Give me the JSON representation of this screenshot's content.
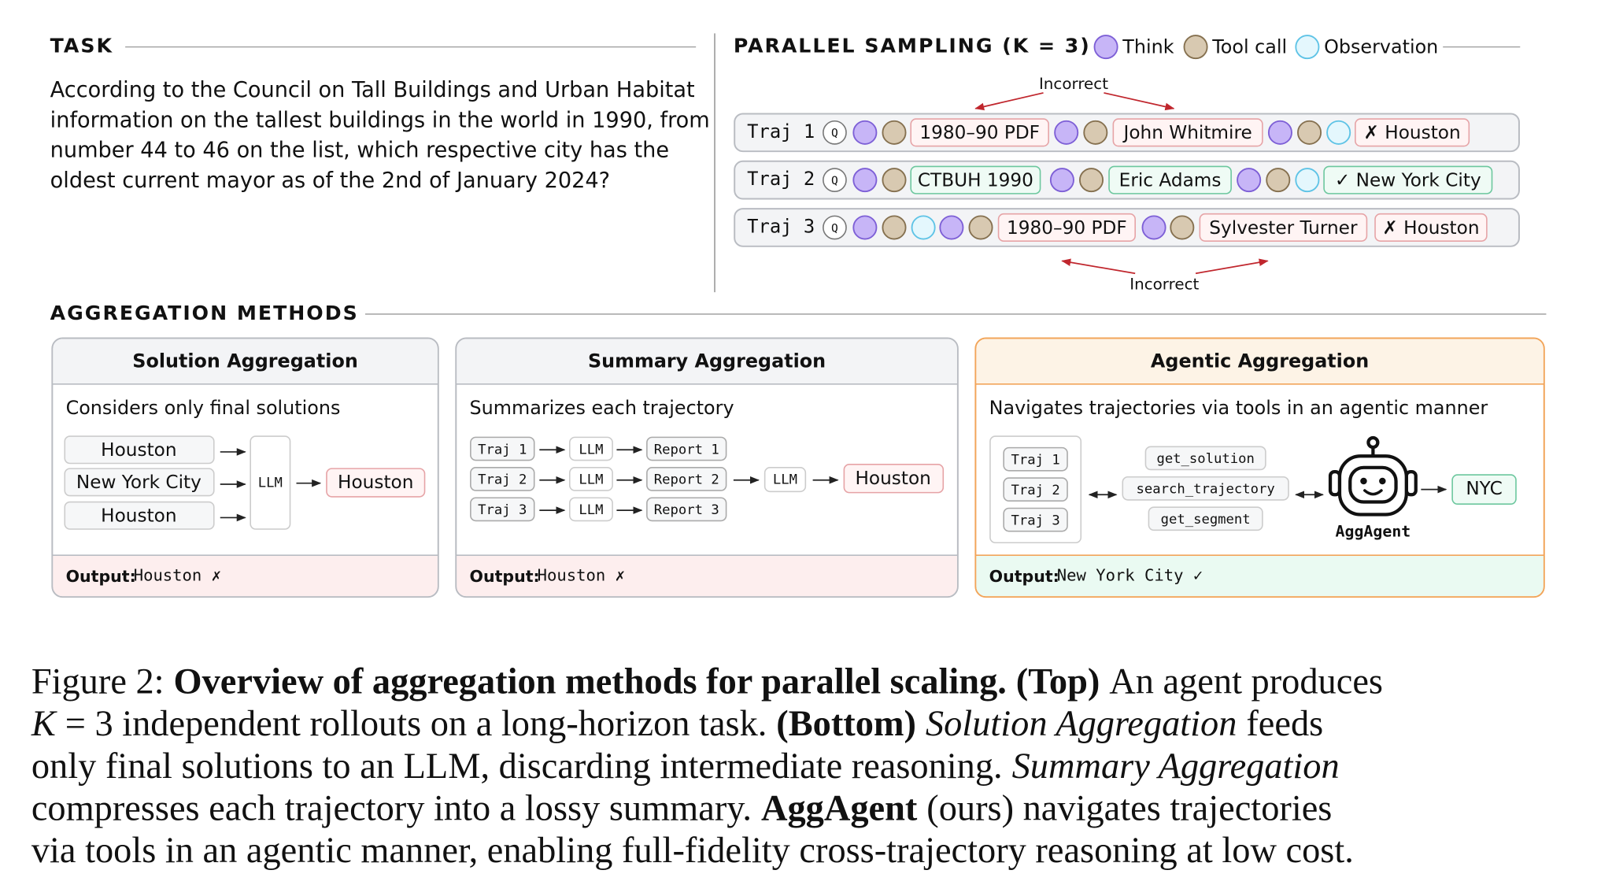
{
  "task": {
    "heading": "TASK",
    "lines": [
      "According to the Council on Tall Buildings and Urban Habitat",
      "information on the tallest buildings in the world in 1990, from",
      "number 44 to 46 on the list, which respective city has the",
      "oldest current mayor as of the 2nd of January 2024?"
    ]
  },
  "sampling": {
    "heading": "PARALLEL SAMPLING (K = 3)",
    "legend": [
      "Think",
      "Tool call",
      "Observation"
    ],
    "annotations": [
      "Incorrect",
      "Incorrect"
    ],
    "trajectories": [
      {
        "label": "Traj 1",
        "query": "Q",
        "boxes": [
          "1980–90 PDF",
          "John Whitmire",
          "✗ Houston"
        ]
      },
      {
        "label": "Traj 2",
        "query": "Q",
        "boxes": [
          "CTBUH 1990",
          "Eric Adams",
          "✓ New York City"
        ]
      },
      {
        "label": "Traj 3",
        "query": "Q",
        "boxes": [
          "1980–90 PDF",
          "Sylvester Turner",
          "✗ Houston"
        ]
      }
    ]
  },
  "aggregation": {
    "heading": "AGGREGATION METHODS",
    "panels": [
      {
        "title": "Solution Aggregation",
        "description": "Considers only final solutions",
        "inputs": [
          "Houston",
          "New York City",
          "Houston"
        ],
        "model": "LLM",
        "result": "Houston",
        "output_label": "Output:",
        "output": "Houston ✗"
      },
      {
        "title": "Summary Aggregation",
        "description": "Summarizes each trajectory",
        "inputs": [
          "Traj 1",
          "Traj 2",
          "Traj 3"
        ],
        "models": [
          "LLM",
          "LLM",
          "LLM"
        ],
        "reports": [
          "Report 1",
          "Report 2",
          "Report 3"
        ],
        "model": "LLM",
        "result": "Houston",
        "output_label": "Output:",
        "output": "Houston ✗"
      },
      {
        "title": "Agentic Aggregation",
        "description": "Navigates trajectories via tools in an agentic manner",
        "inputs": [
          "Traj 1",
          "Traj 2",
          "Traj 3"
        ],
        "tools": [
          "get_solution",
          "search_trajectory",
          "get_segment"
        ],
        "agent": "AggAgent",
        "result": "NYC",
        "output_label": "Output:",
        "output": "New York City ✓"
      }
    ]
  },
  "caption": {
    "lines": [
      [
        "Figure 2:",
        "Overview of aggregation methods for parallel scaling.",
        "(Top)",
        "An agent produces"
      ],
      [
        "K",
        "= 3 independent rollouts on a long-horizon task.",
        "(Bottom)",
        "Solution Aggregation",
        "feeds"
      ],
      [
        "only final solutions to an LLM, discarding intermediate reasoning.",
        "Summary Aggregation"
      ],
      [
        "compresses each trajectory into a lossy summary.",
        "AggAgent",
        "(ours) navigates trajectories"
      ],
      [
        "via tools in an agentic manner, enabling full-fidelity cross-trajectory reasoning at low cost."
      ]
    ]
  }
}
